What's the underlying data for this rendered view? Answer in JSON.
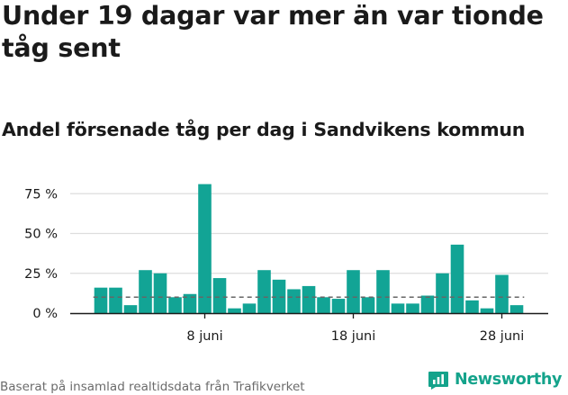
{
  "header": {
    "title": "Under 19 dagar var mer än var tionde tåg sent",
    "subtitle": "Andel försenade tåg per dag i Sandvikens kommun"
  },
  "footer": {
    "source": "Baserat på insamlad realtidsdata från Trafikverket",
    "logo_text": "Newsworthy"
  },
  "colors": {
    "bar": "#12a495",
    "text": "#1a1a1a",
    "muted": "#6b6b6b",
    "grid": "#dddddd",
    "reference_line": "#666666",
    "brand": "#14a38b"
  },
  "chart_data": {
    "type": "bar",
    "x_dates": [
      "2021-06-01",
      "2021-06-02",
      "2021-06-03",
      "2021-06-04",
      "2021-06-05",
      "2021-06-06",
      "2021-06-07",
      "2021-06-08",
      "2021-06-09",
      "2021-06-10",
      "2021-06-11",
      "2021-06-12",
      "2021-06-13",
      "2021-06-14",
      "2021-06-15",
      "2021-06-16",
      "2021-06-17",
      "2021-06-18",
      "2021-06-19",
      "2021-06-20",
      "2021-06-21",
      "2021-06-22",
      "2021-06-23",
      "2021-06-24",
      "2021-06-25",
      "2021-06-26",
      "2021-06-27",
      "2021-06-28",
      "2021-06-29"
    ],
    "values": [
      16,
      16,
      5,
      27,
      25,
      10,
      12,
      81,
      22,
      3,
      6,
      27,
      21,
      15,
      17,
      10,
      9,
      27,
      10,
      27,
      6,
      6,
      11,
      25,
      43,
      8,
      3,
      24,
      5
    ],
    "reference_value": 10,
    "ylim": [
      0,
      90
    ],
    "yticks": [
      0,
      25,
      50,
      75
    ],
    "ytick_labels": [
      "0 %",
      "25 %",
      "50 %",
      "75 %"
    ],
    "xticks": [
      {
        "date": "2021-06-08",
        "label": "8 juni"
      },
      {
        "date": "2021-06-18",
        "label": "18 juni"
      },
      {
        "date": "2021-06-28",
        "label": "28 juni"
      }
    ],
    "grid": true
  }
}
